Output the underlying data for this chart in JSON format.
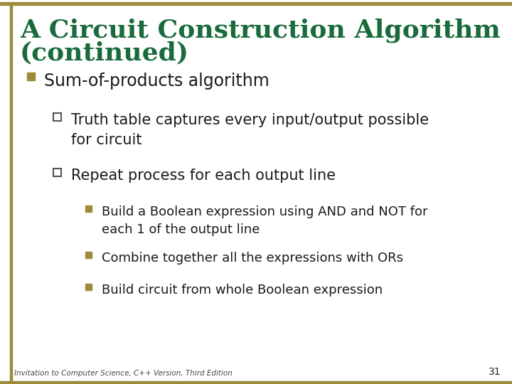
{
  "title_line1": "A Circuit Construction Algorithm",
  "title_line2": "(continued)",
  "title_color": "#1a6b3c",
  "background_color": "#ffffff",
  "border_color": "#9B8B3A",
  "bullet1_color": "#9B8B3A",
  "bullet2_color": "#555555",
  "bullet3_color": "#9B8B3A",
  "text_color": "#1a1a1a",
  "footer_text": "Invitation to Computer Science, C++ Version, Third Edition",
  "page_number": "31",
  "title_fontsize": 26,
  "l1_fontsize": 17,
  "l2_fontsize": 15,
  "l3_fontsize": 13
}
